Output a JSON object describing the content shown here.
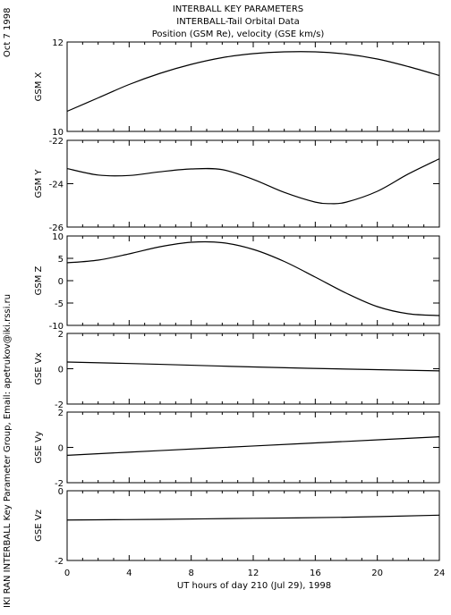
{
  "header": {
    "line1": "INTERBALL KEY PARAMETERS",
    "line2": "INTERBALL-Tail Orbital Data",
    "line3": "Position (GSM Re), velocity (GSE km/s)"
  },
  "side": {
    "date": "Oct  7 1998",
    "credit": "IKI RAN INTERBALL Key Parameter Group, Email: apetrukov@iki.rssi.ru"
  },
  "chart_data": {
    "type": "line",
    "x_axis": {
      "label": "UT hours of day 210 (Jul 29), 1998",
      "range": [
        0,
        24
      ],
      "ticks": [
        0,
        4,
        8,
        12,
        16,
        20,
        24
      ]
    },
    "panels": [
      {
        "ylabel": "GSM X",
        "ylim": [
          10,
          12
        ],
        "ticks": [
          10,
          12
        ],
        "x": [
          0,
          2,
          4,
          6,
          8,
          10,
          12,
          14,
          16,
          18,
          20,
          22,
          24
        ],
        "y": [
          10.45,
          10.75,
          11.05,
          11.3,
          11.5,
          11.65,
          11.74,
          11.78,
          11.78,
          11.73,
          11.62,
          11.45,
          11.25
        ]
      },
      {
        "ylabel": "GSM Y",
        "ylim": [
          -26,
          -22
        ],
        "ticks": [
          -26,
          -24,
          -22
        ],
        "x": [
          0,
          2,
          4,
          6,
          8,
          10,
          12,
          14,
          16,
          17,
          18,
          20,
          22,
          24
        ],
        "y": [
          -23.3,
          -23.6,
          -23.62,
          -23.45,
          -23.32,
          -23.35,
          -23.8,
          -24.4,
          -24.85,
          -24.92,
          -24.85,
          -24.35,
          -23.55,
          -22.85
        ]
      },
      {
        "ylabel": "GSM Z",
        "ylim": [
          -10,
          10
        ],
        "ticks": [
          -10,
          -5,
          0,
          5,
          10
        ],
        "x": [
          0,
          2,
          4,
          6,
          8,
          10,
          12,
          14,
          16,
          18,
          20,
          22,
          24
        ],
        "y": [
          4,
          4.6,
          6.0,
          7.6,
          8.6,
          8.5,
          7.0,
          4.3,
          0.8,
          -2.8,
          -5.8,
          -7.4,
          -7.8
        ]
      },
      {
        "ylabel": "GSE Vx",
        "ylim": [
          -2,
          2
        ],
        "ticks": [
          -2,
          0,
          2
        ],
        "x": [
          0,
          6,
          12,
          18,
          24
        ],
        "y": [
          0.38,
          0.25,
          0.1,
          -0.02,
          -0.12
        ]
      },
      {
        "ylabel": "GSE Vy",
        "ylim": [
          -2,
          2
        ],
        "ticks": [
          -2,
          0,
          2
        ],
        "x": [
          0,
          6,
          12,
          18,
          24
        ],
        "y": [
          -0.45,
          -0.18,
          0.08,
          0.34,
          0.6
        ]
      },
      {
        "ylabel": "GSE Vz",
        "ylim": [
          -2,
          0
        ],
        "ticks": [
          -2,
          0
        ],
        "x": [
          0,
          6,
          12,
          18,
          24
        ],
        "y": [
          -0.84,
          -0.82,
          -0.79,
          -0.76,
          -0.7
        ]
      }
    ]
  }
}
